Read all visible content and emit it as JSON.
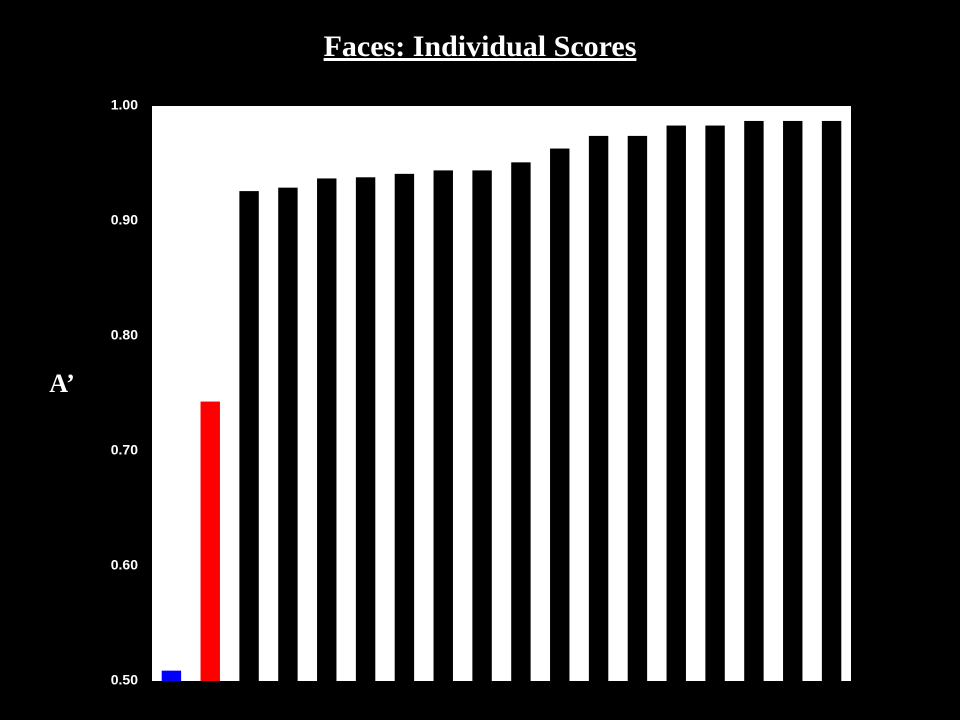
{
  "chart_data": {
    "type": "bar",
    "title": "Faces: Individual Scores",
    "y_label": "A’",
    "categories": [
      null,
      null,
      null,
      null,
      null,
      null,
      null,
      null,
      null,
      null,
      null,
      null,
      null,
      null,
      null,
      null,
      null,
      null
    ],
    "values": [
      0.509,
      0.743,
      0.926,
      0.929,
      0.937,
      0.938,
      0.941,
      0.944,
      0.944,
      0.951,
      0.963,
      0.974,
      0.974,
      0.983,
      0.983,
      0.987,
      0.987,
      0.987
    ],
    "colors": [
      "#0000ff",
      "#ff0000",
      "#000000",
      "#000000",
      "#000000",
      "#000000",
      "#000000",
      "#000000",
      "#000000",
      "#000000",
      "#000000",
      "#000000",
      "#000000",
      "#000000",
      "#000000",
      "#000000",
      "#000000",
      "#000000"
    ],
    "ylim": [
      0.5,
      1.0
    ],
    "yticks": [
      {
        "value": 0.5,
        "label": "0.50"
      },
      {
        "value": 0.6,
        "label": "0.60"
      },
      {
        "value": 0.7,
        "label": "0.70"
      },
      {
        "value": 0.8,
        "label": "0.80"
      },
      {
        "value": 0.9,
        "label": "0.90"
      },
      {
        "value": 1.0,
        "label": "1.00"
      }
    ],
    "plot_background": "#ffffff"
  }
}
